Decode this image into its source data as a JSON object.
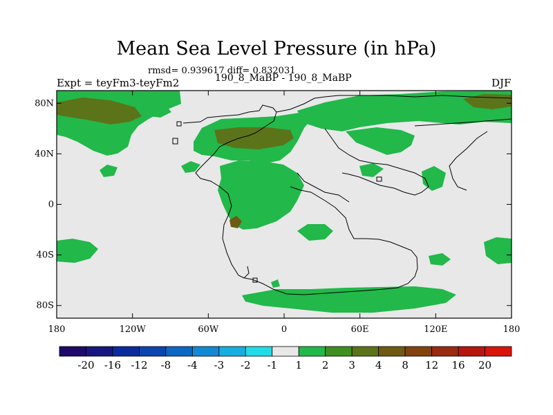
{
  "header": {
    "title": "Mean Sea Level Pressure (in hPa)",
    "stats": "rmsd= 0.939617 diff= 0.832031",
    "experiment": "Expt = teyFm3-teyFm2",
    "comparison": "190_8_MaBP - 190_8_MaBP",
    "season": "DJF"
  },
  "map": {
    "type": "filled-contour-map",
    "projection": "cylindrical-equidistant",
    "lon_range": [
      -180,
      180
    ],
    "lat_range": [
      -90,
      90
    ],
    "lat_ticks": [
      {
        "value": 80,
        "label": "80N"
      },
      {
        "value": 40,
        "label": "40N"
      },
      {
        "value": 0,
        "label": "0"
      },
      {
        "value": -40,
        "label": "40S"
      },
      {
        "value": -80,
        "label": "80S"
      }
    ],
    "lon_ticks": [
      {
        "value": -180,
        "label": "180"
      },
      {
        "value": -120,
        "label": "120W"
      },
      {
        "value": -60,
        "label": "60W"
      },
      {
        "value": 0,
        "label": "0"
      },
      {
        "value": 60,
        "label": "60E"
      },
      {
        "value": 120,
        "label": "120E"
      },
      {
        "value": 180,
        "label": "180"
      }
    ]
  },
  "colorbar": {
    "colors": [
      "#1f0a6b",
      "#17177f",
      "#0b2a9e",
      "#0a45b0",
      "#0c66c4",
      "#1289d4",
      "#16aee0",
      "#21dbe6",
      "#e8e8e8",
      "#22b84a",
      "#3f8f22",
      "#5c7419",
      "#6e5a12",
      "#82430f",
      "#9a2a12",
      "#b5160d",
      "#d9140a"
    ],
    "labels": [
      "-20",
      "-16",
      "-12",
      "-8",
      "-4",
      "-3",
      "-2",
      "-1",
      "1",
      "2",
      "3",
      "4",
      "8",
      "12",
      "16",
      "20"
    ]
  },
  "colors": {
    "neutral": "#e8e8e8",
    "green": "#22b84a",
    "olive": "#5c7419",
    "brown": "#6e5a12",
    "coast": "#000000"
  }
}
